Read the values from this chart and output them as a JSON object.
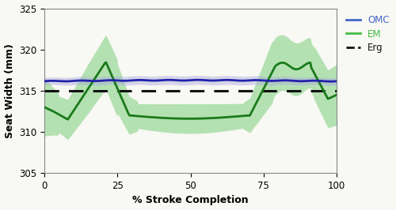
{
  "xlabel": "% Stroke Completion",
  "ylabel": "Seat Width (mm)",
  "xlim": [
    0,
    100
  ],
  "ylim": [
    305,
    325
  ],
  "yticks": [
    305,
    310,
    315,
    320,
    325
  ],
  "xticks": [
    0,
    25,
    50,
    75,
    100
  ],
  "erg_value": 315.0,
  "omc_color": "#2222aa",
  "em_color": "#1a7a1a",
  "em_fill_color": "#7dcf7d",
  "omc_fill_color": "#aaaadd",
  "erg_color": "#111111",
  "background_color": "#f8f8f4",
  "legend_omc_color": "#4466cc",
  "legend_em_color": "#44bb44"
}
